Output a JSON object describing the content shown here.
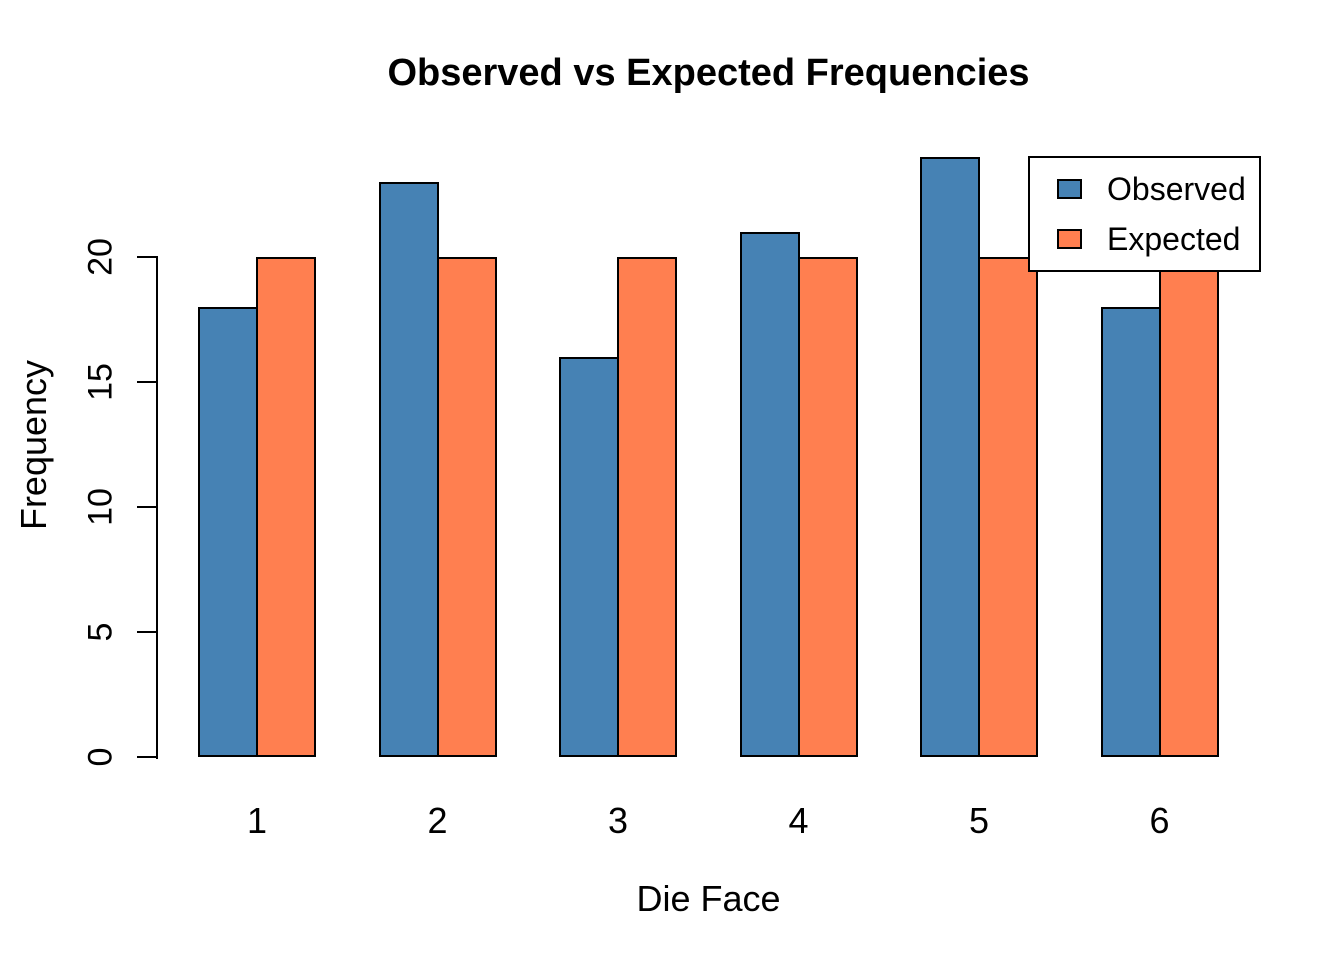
{
  "chart_data": {
    "type": "bar",
    "title": "Observed vs Expected Frequencies",
    "xlabel": "Die Face",
    "ylabel": "Frequency",
    "categories": [
      "1",
      "2",
      "3",
      "4",
      "5",
      "6"
    ],
    "series": [
      {
        "name": "Observed",
        "color": "#4682B4",
        "values": [
          18,
          23,
          16,
          21,
          24,
          18
        ]
      },
      {
        "name": "Expected",
        "color": "#FF7F50",
        "values": [
          20,
          20,
          20,
          20,
          20,
          20
        ]
      }
    ],
    "ylim": [
      0,
      25
    ],
    "yticks": [
      0,
      5,
      10,
      15,
      20
    ],
    "grid": false,
    "legend_position": "top-right",
    "bar_border_color": "#000000",
    "background_color": "#ffffff"
  }
}
